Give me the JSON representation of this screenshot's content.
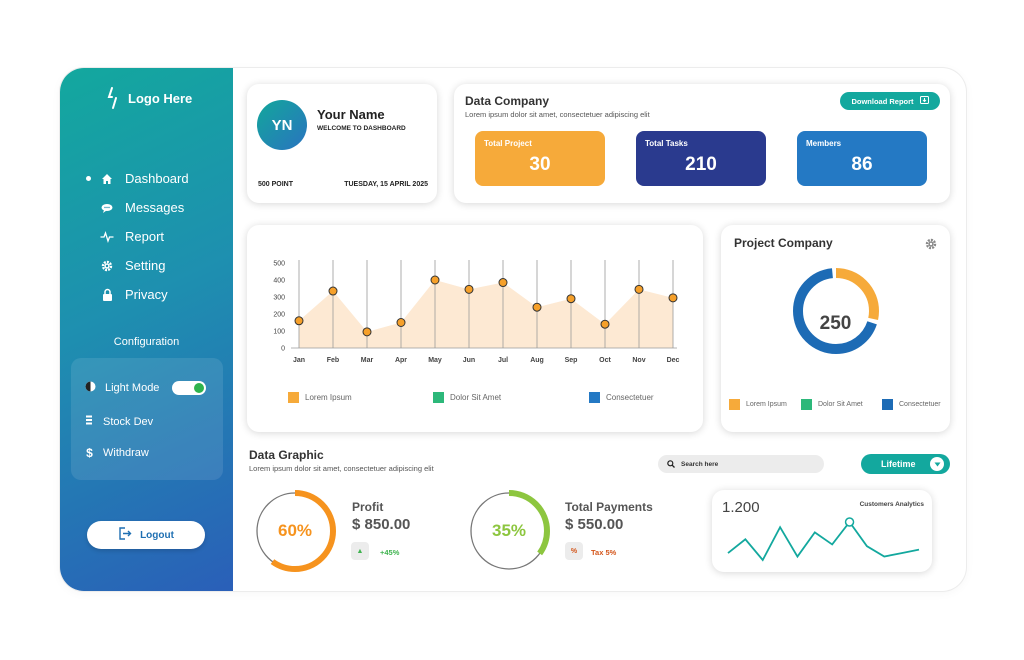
{
  "brand": {
    "logo_text": "Logo Here"
  },
  "sidebar": {
    "items": [
      {
        "label": "Dashboard",
        "icon": "home-icon",
        "active": true
      },
      {
        "label": "Messages",
        "icon": "chat-icon",
        "active": false
      },
      {
        "label": "Report",
        "icon": "pulse-icon",
        "active": false
      },
      {
        "label": "Setting",
        "icon": "gear-icon",
        "active": false
      },
      {
        "label": "Privacy",
        "icon": "lock-icon",
        "active": false
      }
    ],
    "config_title": "Configuration",
    "config_items": [
      {
        "label": "Light Mode",
        "icon": "half-circle-icon",
        "toggle_on": true
      },
      {
        "label": "Stock Dev",
        "icon": "list-icon"
      },
      {
        "label": "Withdraw",
        "icon": "dollar-icon"
      }
    ],
    "logout_label": "Logout"
  },
  "profile": {
    "initials": "YN",
    "name": "Your Name",
    "subtitle": "WELCOME TO DASHBOARD",
    "points": "500 POINT",
    "date": "TUESDAY, 15 APRIL 2025"
  },
  "company": {
    "title": "Data Company",
    "subtitle": "Lorem ipsum dolor sit amet, consectetuer adipiscing elit",
    "download_label": "Download Report",
    "stats": [
      {
        "label": "Total Project",
        "value": "30",
        "color": "#f6aa3a"
      },
      {
        "label": "Total Tasks",
        "value": "210",
        "color": "#2a3a8e"
      },
      {
        "label": "Members",
        "value": "86",
        "color": "#2479c4"
      }
    ]
  },
  "monthly_chart": {
    "legend": [
      "Lorem Ipsum",
      "Dolor Sit Amet",
      "Consectetuer"
    ],
    "legend_colors": [
      "#f6aa3a",
      "#2db87a",
      "#2479c4"
    ]
  },
  "chart_data": {
    "type": "area",
    "categories": [
      "Jan",
      "Feb",
      "Mar",
      "Apr",
      "May",
      "Jun",
      "Jul",
      "Aug",
      "Sep",
      "Oct",
      "Nov",
      "Dec"
    ],
    "values": [
      160,
      335,
      95,
      150,
      400,
      345,
      385,
      240,
      290,
      140,
      345,
      295
    ],
    "yticks": [
      0,
      100,
      200,
      300,
      400,
      500
    ],
    "ylim": [
      0,
      500
    ],
    "fill_color": "#fde9d3",
    "marker_color": "#f6a02a"
  },
  "project_company": {
    "title": "Project Company",
    "total": "250",
    "segments": [
      {
        "name": "Lorem Ipsum",
        "fraction": 0.3,
        "color": "#f6aa3a"
      },
      {
        "name": "Dolor Sit Amet",
        "fraction": 0.0,
        "color": "#2db87a"
      },
      {
        "name": "Consectetuer",
        "fraction": 0.7,
        "color": "#1d6bb5"
      }
    ],
    "legend": [
      "Lorem Ipsum",
      "Dolor Sit Amet",
      "Consectetuer"
    ]
  },
  "data_graphic": {
    "title": "Data Graphic",
    "subtitle": "Lorem ipsum dolor sit amet, consectetuer adipiscing elit",
    "search_placeholder": "Search here",
    "filter_label": "Lifetime"
  },
  "profit": {
    "percent_label": "60%",
    "fraction": 0.6,
    "color": "#f6931e",
    "title": "Profit",
    "value": "$ 850.00",
    "change": "+45%",
    "change_icon": "▲"
  },
  "payments": {
    "percent_label": "35%",
    "fraction": 0.35,
    "color": "#8dc63f",
    "title": "Total Payments",
    "value": "$ 550.00",
    "tax_icon": "%",
    "tax": "Tax 5%"
  },
  "analytics": {
    "value": "1.200",
    "title": "Customers Analytics",
    "series": [
      30,
      22,
      34,
      15,
      32,
      18,
      25,
      12,
      26,
      32,
      30,
      28
    ],
    "color": "#13a89e"
  }
}
